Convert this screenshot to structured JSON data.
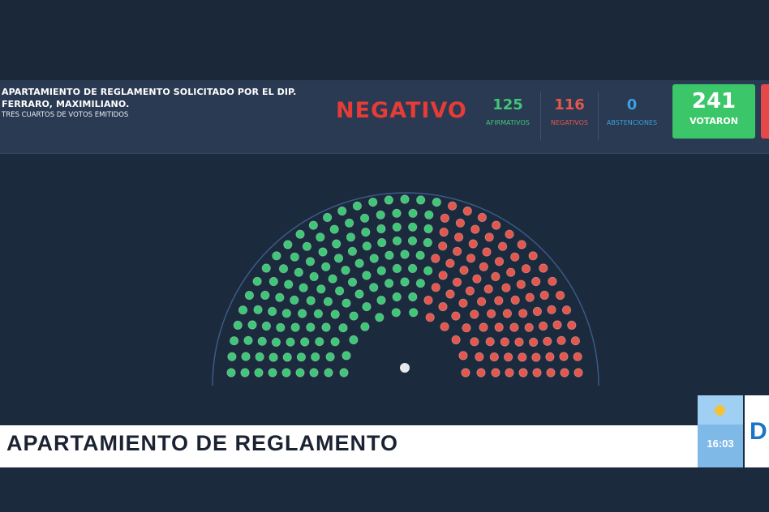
{
  "motion": {
    "title": "APARTAMIENTO DE REGLAMENTO SOLICITADO POR EL DIP. FERRARO, MAXIMILIANO.",
    "rule": "TRES CUARTOS DE VOTOS EMITIDOS"
  },
  "result": "NEGATIVO",
  "counts": {
    "afirmativos": {
      "value": "125",
      "label": "AFIRMATIVOS"
    },
    "negativos": {
      "value": "116",
      "label": "NEGATIVOS"
    },
    "abstenciones": {
      "value": "0",
      "label": "ABSTENCIONES"
    },
    "votaron": {
      "value": "241",
      "label": "VOTARON"
    }
  },
  "colors": {
    "afirmativo": "#3ec777",
    "negativo": "#e5574d",
    "abstencion": "#3aa0e0",
    "ausente": "#6b6f78",
    "background": "#1c2a3d"
  },
  "banner": {
    "text": "APARTAMIENTO DE REGLAMENTO"
  },
  "clock": {
    "time": "16:03"
  }
}
